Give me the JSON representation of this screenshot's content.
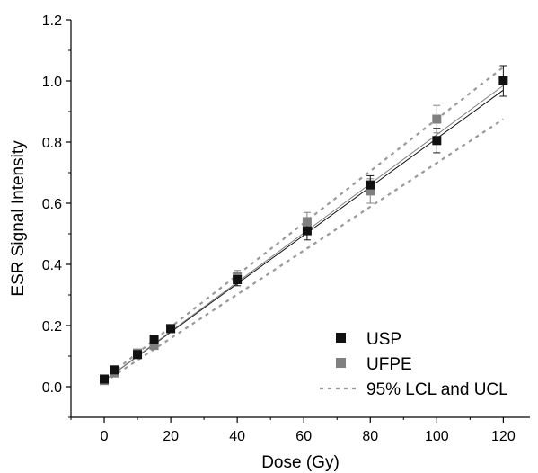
{
  "chart_data": {
    "type": "scatter",
    "xlabel": "Dose (Gy)",
    "ylabel": "ESR Signal Intensity",
    "xlim": [
      -10,
      128
    ],
    "ylim": [
      -0.1,
      1.2
    ],
    "x_ticks": [
      0,
      20,
      40,
      60,
      80,
      100,
      120
    ],
    "x_tick_labels": [
      "0",
      "20",
      "40",
      "60",
      "80",
      "100",
      "120"
    ],
    "y_ticks": [
      0.0,
      0.2,
      0.4,
      0.6,
      0.8,
      1.0,
      1.2
    ],
    "y_tick_labels": [
      "0.0",
      "0.2",
      "0.4",
      "0.6",
      "0.8",
      "1.0",
      "1.2"
    ],
    "grid": false,
    "legend_position": "bottom-right",
    "series": [
      {
        "name": "USP",
        "color": "#111111",
        "marker": "square",
        "x": [
          0,
          3,
          10,
          15,
          20,
          40,
          61,
          80,
          100,
          120
        ],
        "y": [
          0.025,
          0.055,
          0.105,
          0.155,
          0.19,
          0.35,
          0.51,
          0.66,
          0.805,
          1.0
        ],
        "yerr": [
          0.005,
          0.005,
          0.008,
          0.01,
          0.008,
          0.02,
          0.03,
          0.03,
          0.04,
          0.05
        ]
      },
      {
        "name": "UFPE",
        "color": "#808080",
        "marker": "square",
        "x": [
          0,
          3,
          10,
          15,
          20,
          40,
          61,
          80,
          100
        ],
        "y": [
          0.02,
          0.045,
          0.11,
          0.135,
          0.19,
          0.36,
          0.54,
          0.64,
          0.875
        ],
        "yerr": [
          0.005,
          0.005,
          0.008,
          0.01,
          0.008,
          0.02,
          0.03,
          0.04,
          0.045
        ]
      }
    ],
    "fit_lines": [
      {
        "color": "#111111",
        "x": [
          0,
          120
        ],
        "y": [
          0.02,
          0.97
        ]
      },
      {
        "color": "#808080",
        "x": [
          0,
          120
        ],
        "y": [
          0.02,
          0.985
        ]
      }
    ],
    "confidence_band": {
      "name": "95% LCL and UCL",
      "color": "#999999",
      "lower": {
        "x": [
          0,
          120
        ],
        "y": [
          0.015,
          0.875
        ]
      },
      "upper": {
        "x": [
          0,
          120
        ],
        "y": [
          0.025,
          1.045
        ]
      }
    }
  }
}
